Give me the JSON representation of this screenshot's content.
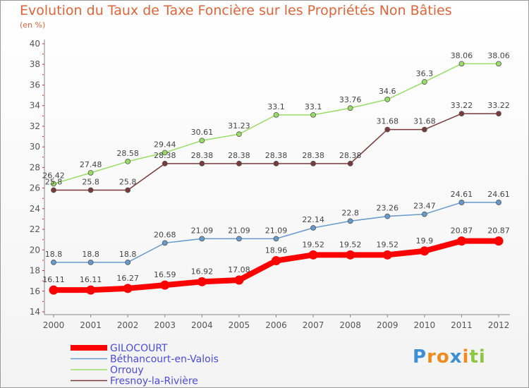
{
  "page": {
    "title": "Evolution du Taux de Taxe Foncière sur les Propriétés Non Bâties",
    "subtitle": "(en %)",
    "logo_text": "Proxiti"
  },
  "chart_data": {
    "type": "line",
    "title": "Evolution du Taux de Taxe Foncière sur les Propriétés Non Bâties",
    "ylabel": "(en %)",
    "xlabel": "",
    "ylim": [
      14,
      40
    ],
    "yticks": [
      14,
      16,
      18,
      20,
      22,
      24,
      26,
      28,
      30,
      32,
      34,
      36,
      38,
      40
    ],
    "grid": false,
    "legend_position": "bottom-left",
    "x": [
      "2000",
      "2001",
      "2002",
      "2003",
      "2004",
      "2005",
      "2006",
      "2007",
      "2008",
      "2009",
      "2010",
      "2011",
      "2012"
    ],
    "series": [
      {
        "name": "GILOCOURT",
        "color": "#ff0000",
        "values": [
          16.11,
          16.11,
          16.27,
          16.59,
          16.92,
          17.08,
          18.96,
          19.52,
          19.52,
          19.52,
          19.9,
          20.87,
          20.87
        ],
        "labels": [
          "16.11",
          "16.11",
          "16.27",
          "16.59",
          "16.92",
          "17.08",
          "18.96",
          "19.52",
          "19.52",
          "19.52",
          "19.9",
          "20.87",
          "20.87"
        ]
      },
      {
        "name": "Béthancourt-en-Valois",
        "color": "#6699cc",
        "values": [
          18.8,
          18.8,
          18.8,
          20.68,
          21.09,
          21.09,
          21.09,
          22.14,
          22.8,
          23.26,
          23.47,
          24.61,
          24.61
        ],
        "labels": [
          "18.8",
          "18.8",
          "18.8",
          "20.68",
          "21.09",
          "21.09",
          "21.09",
          "22.14",
          "22.8",
          "23.26",
          "23.47",
          "24.61",
          "24.61"
        ]
      },
      {
        "name": "Orrouy",
        "color": "#99dd66",
        "values": [
          26.42,
          27.48,
          28.58,
          29.44,
          30.61,
          31.23,
          33.1,
          33.1,
          33.76,
          34.6,
          36.3,
          38.06,
          38.06
        ],
        "labels": [
          "26.42",
          "27.48",
          "28.58",
          "29.44",
          "30.61",
          "31.23",
          "33.1",
          "33.1",
          "33.76",
          "34.6",
          "36.3",
          "38.06",
          "38.06"
        ]
      },
      {
        "name": "Fresnoy-la-Rivière",
        "color": "#7a3a3a",
        "values": [
          25.8,
          25.8,
          25.8,
          28.38,
          28.38,
          28.38,
          28.38,
          28.38,
          28.38,
          31.68,
          31.68,
          33.22,
          33.22
        ],
        "labels": [
          "25.8",
          "25.8",
          "25.8",
          "28.38",
          "28.38",
          "28.38",
          "28.38",
          "28.38",
          "28.38",
          "31.68",
          "31.68",
          "33.22",
          "33.22"
        ]
      }
    ]
  }
}
